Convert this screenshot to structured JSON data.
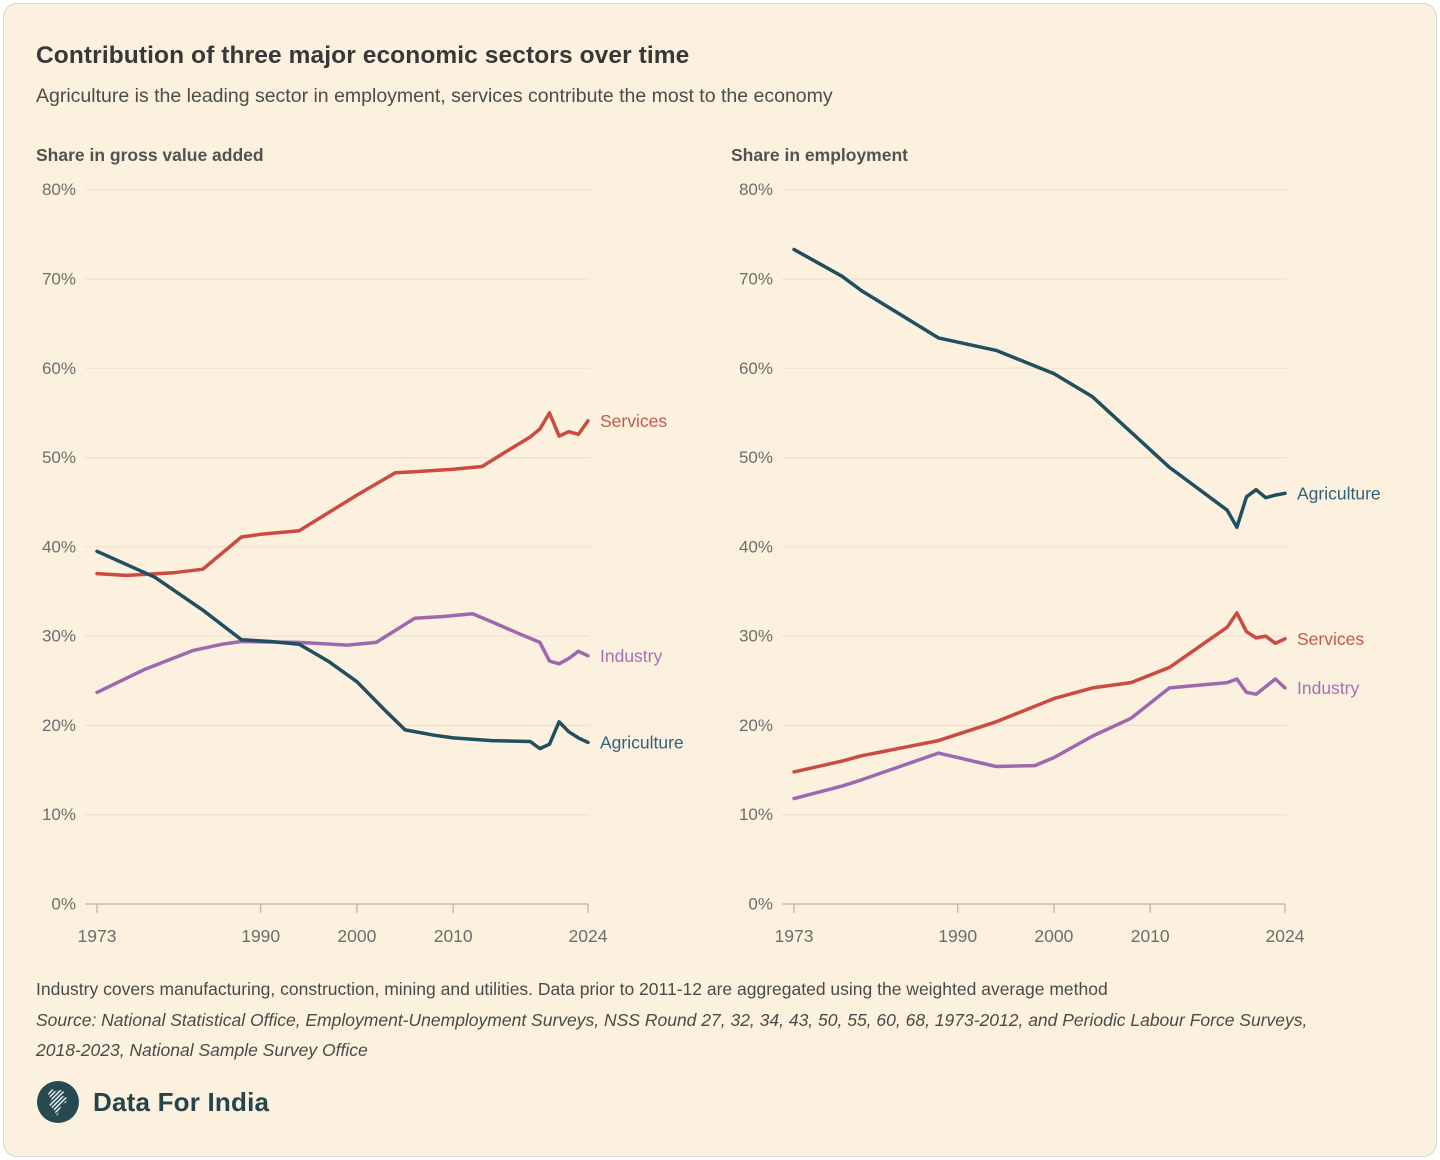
{
  "card": {
    "title": "Contribution of three major economic sectors over time",
    "subtitle": "Agriculture is the leading sector in employment, services contribute the most to the economy",
    "footnote": "Industry covers manufacturing, construction, mining and utilities. Data prior to 2011-12 are aggregated using the weighted average method",
    "source": "Source: National Statistical Office, Employment-Unemployment Surveys, NSS Round 27, 32, 34, 43, 50, 55, 60, 68, 1973-2012, and Periodic Labour Force Surveys, 2018-2023, National Sample Survey Office",
    "brand": "Data For India"
  },
  "colors": {
    "background": "#fbf1de",
    "grid": "#e9dfca",
    "axis": "#c6bda9",
    "tick_text": "#6d6d6d",
    "services": "#cb4a42",
    "industry": "#9e68b0",
    "agriculture": "#204f62",
    "logo_teal": "#274a52"
  },
  "chart_data": [
    {
      "type": "line",
      "title": "Share in gross value added",
      "x": {
        "min": 1973,
        "max": 2024,
        "ticks": [
          1973,
          1990,
          2000,
          2010,
          2024
        ]
      },
      "y": {
        "min": 0,
        "max": 80,
        "step": 10,
        "unit": "%"
      },
      "grid": true,
      "legend": "line-end-labels",
      "series": [
        {
          "name": "Services",
          "color": "#cb4a42",
          "label_color": "#c9564d",
          "points": [
            [
              1973,
              37.0
            ],
            [
              1976,
              36.8
            ],
            [
              1981,
              37.1
            ],
            [
              1984,
              37.5
            ],
            [
              1988,
              41.1
            ],
            [
              1990,
              41.4
            ],
            [
              1994,
              41.8
            ],
            [
              2000,
              45.8
            ],
            [
              2004,
              48.3
            ],
            [
              2006,
              48.4
            ],
            [
              2010,
              48.7
            ],
            [
              2013,
              49.0
            ],
            [
              2016,
              51.0
            ],
            [
              2018,
              52.3
            ],
            [
              2019,
              53.2
            ],
            [
              2020,
              55.0
            ],
            [
              2021,
              52.4
            ],
            [
              2022,
              52.9
            ],
            [
              2023,
              52.6
            ],
            [
              2024,
              54.1
            ]
          ]
        },
        {
          "name": "Industry",
          "color": "#9e68b0",
          "label_color": "#a571b5",
          "points": [
            [
              1973,
              23.7
            ],
            [
              1978,
              26.3
            ],
            [
              1983,
              28.4
            ],
            [
              1986,
              29.1
            ],
            [
              1988,
              29.4
            ],
            [
              1994,
              29.3
            ],
            [
              1999,
              29.0
            ],
            [
              2002,
              29.3
            ],
            [
              2006,
              32.0
            ],
            [
              2009,
              32.2
            ],
            [
              2012,
              32.5
            ],
            [
              2014,
              31.6
            ],
            [
              2017,
              30.2
            ],
            [
              2019,
              29.3
            ],
            [
              2020,
              27.2
            ],
            [
              2021,
              26.9
            ],
            [
              2022,
              27.5
            ],
            [
              2023,
              28.3
            ],
            [
              2024,
              27.8
            ]
          ]
        },
        {
          "name": "Agriculture",
          "color": "#204f62",
          "label_color": "#33627a",
          "points": [
            [
              1973,
              39.5
            ],
            [
              1979,
              36.6
            ],
            [
              1984,
              32.9
            ],
            [
              1988,
              29.6
            ],
            [
              1991,
              29.4
            ],
            [
              1994,
              29.1
            ],
            [
              1997,
              27.2
            ],
            [
              2000,
              24.9
            ],
            [
              2003,
              21.6
            ],
            [
              2005,
              19.5
            ],
            [
              2008,
              18.9
            ],
            [
              2010,
              18.6
            ],
            [
              2014,
              18.3
            ],
            [
              2018,
              18.2
            ],
            [
              2019,
              17.4
            ],
            [
              2020,
              17.9
            ],
            [
              2021,
              20.4
            ],
            [
              2022,
              19.3
            ],
            [
              2023,
              18.6
            ],
            [
              2024,
              18.1
            ]
          ]
        }
      ]
    },
    {
      "type": "line",
      "title": "Share in employment",
      "x": {
        "min": 1973,
        "max": 2024,
        "ticks": [
          1973,
          1990,
          2000,
          2010,
          2024
        ]
      },
      "y": {
        "min": 0,
        "max": 80,
        "step": 10,
        "unit": "%"
      },
      "grid": true,
      "legend": "line-end-labels",
      "series": [
        {
          "name": "Agriculture",
          "color": "#204f62",
          "label_color": "#33627a",
          "points": [
            [
              1973,
              73.3
            ],
            [
              1978,
              70.3
            ],
            [
              1980,
              68.7
            ],
            [
              1988,
              63.4
            ],
            [
              1994,
              62.0
            ],
            [
              2000,
              59.4
            ],
            [
              2004,
              56.8
            ],
            [
              2012,
              48.9
            ],
            [
              2018,
              44.1
            ],
            [
              2019,
              42.2
            ],
            [
              2020,
              45.6
            ],
            [
              2021,
              46.4
            ],
            [
              2022,
              45.5
            ],
            [
              2023,
              45.8
            ],
            [
              2024,
              46.0
            ]
          ]
        },
        {
          "name": "Services",
          "color": "#cb4a42",
          "label_color": "#c9564d",
          "points": [
            [
              1973,
              14.8
            ],
            [
              1978,
              16.0
            ],
            [
              1980,
              16.6
            ],
            [
              1988,
              18.3
            ],
            [
              1994,
              20.4
            ],
            [
              2000,
              23.0
            ],
            [
              2004,
              24.2
            ],
            [
              2008,
              24.8
            ],
            [
              2012,
              26.5
            ],
            [
              2018,
              31.0
            ],
            [
              2019,
              32.6
            ],
            [
              2020,
              30.5
            ],
            [
              2021,
              29.8
            ],
            [
              2022,
              30.0
            ],
            [
              2023,
              29.2
            ],
            [
              2024,
              29.7
            ]
          ]
        },
        {
          "name": "Industry",
          "color": "#9e68b0",
          "label_color": "#a571b5",
          "points": [
            [
              1973,
              11.8
            ],
            [
              1978,
              13.2
            ],
            [
              1980,
              13.9
            ],
            [
              1988,
              16.9
            ],
            [
              1994,
              15.4
            ],
            [
              1998,
              15.5
            ],
            [
              2000,
              16.4
            ],
            [
              2004,
              18.8
            ],
            [
              2008,
              20.8
            ],
            [
              2012,
              24.2
            ],
            [
              2018,
              24.8
            ],
            [
              2019,
              25.2
            ],
            [
              2020,
              23.7
            ],
            [
              2021,
              23.5
            ],
            [
              2023,
              25.2
            ],
            [
              2024,
              24.2
            ]
          ]
        }
      ]
    }
  ]
}
